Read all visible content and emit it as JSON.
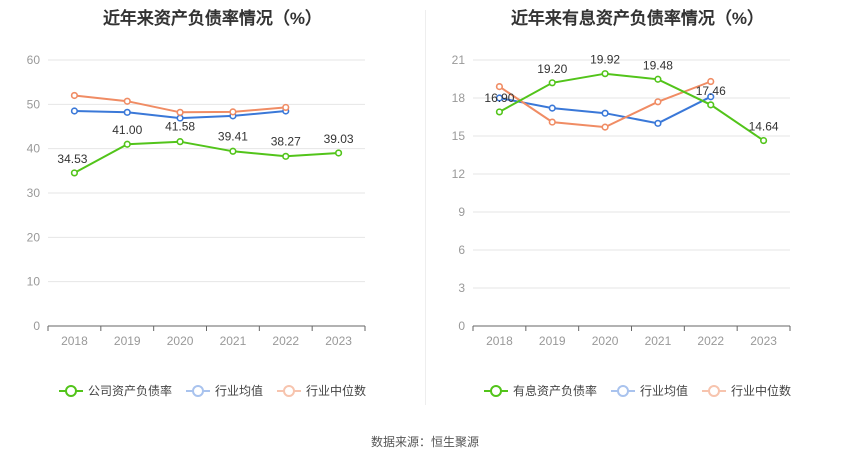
{
  "source_text": "数据来源：恒生聚源",
  "chart_data": [
    {
      "type": "line",
      "title": "近年来资产负债率情况（%）",
      "categories": [
        "2018",
        "2019",
        "2020",
        "2021",
        "2022",
        "2023"
      ],
      "ylim": [
        0,
        60
      ],
      "yticks": [
        0,
        10,
        20,
        30,
        40,
        50,
        60
      ],
      "grid": true,
      "legend_position": "bottom",
      "series": [
        {
          "name": "公司资产负债率",
          "color": "#52c41a",
          "values": [
            34.53,
            41.0,
            41.58,
            39.41,
            38.27,
            39.03
          ],
          "labels": [
            "34.53",
            "41.00",
            "41.58",
            "39.41",
            "38.27",
            "39.03"
          ]
        },
        {
          "name": "行业均值",
          "color": "#3a78d8",
          "values": [
            48.5,
            48.2,
            46.9,
            47.4,
            48.5,
            null
          ]
        },
        {
          "name": "行业中位数",
          "color": "#f08c64",
          "values": [
            52.0,
            50.7,
            48.2,
            48.3,
            49.3,
            null
          ]
        }
      ]
    },
    {
      "type": "line",
      "title": "近年来有息资产负债率情况（%）",
      "categories": [
        "2018",
        "2019",
        "2020",
        "2021",
        "2022",
        "2023"
      ],
      "ylim": [
        0,
        21
      ],
      "yticks": [
        0,
        3,
        6,
        9,
        12,
        15,
        18,
        21
      ],
      "grid": true,
      "legend_position": "bottom",
      "series": [
        {
          "name": "有息资产负债率",
          "color": "#52c41a",
          "values": [
            16.9,
            19.2,
            19.92,
            19.48,
            17.46,
            14.64
          ],
          "labels": [
            "16.90",
            "19.20",
            "19.92",
            "19.48",
            "17.46",
            "14.64"
          ]
        },
        {
          "name": "行业均值",
          "color": "#3a78d8",
          "values": [
            18.0,
            17.2,
            16.8,
            16.0,
            18.1,
            null
          ]
        },
        {
          "name": "行业中位数",
          "color": "#f08c64",
          "values": [
            18.9,
            16.1,
            15.7,
            17.7,
            19.3,
            null
          ]
        }
      ]
    }
  ]
}
